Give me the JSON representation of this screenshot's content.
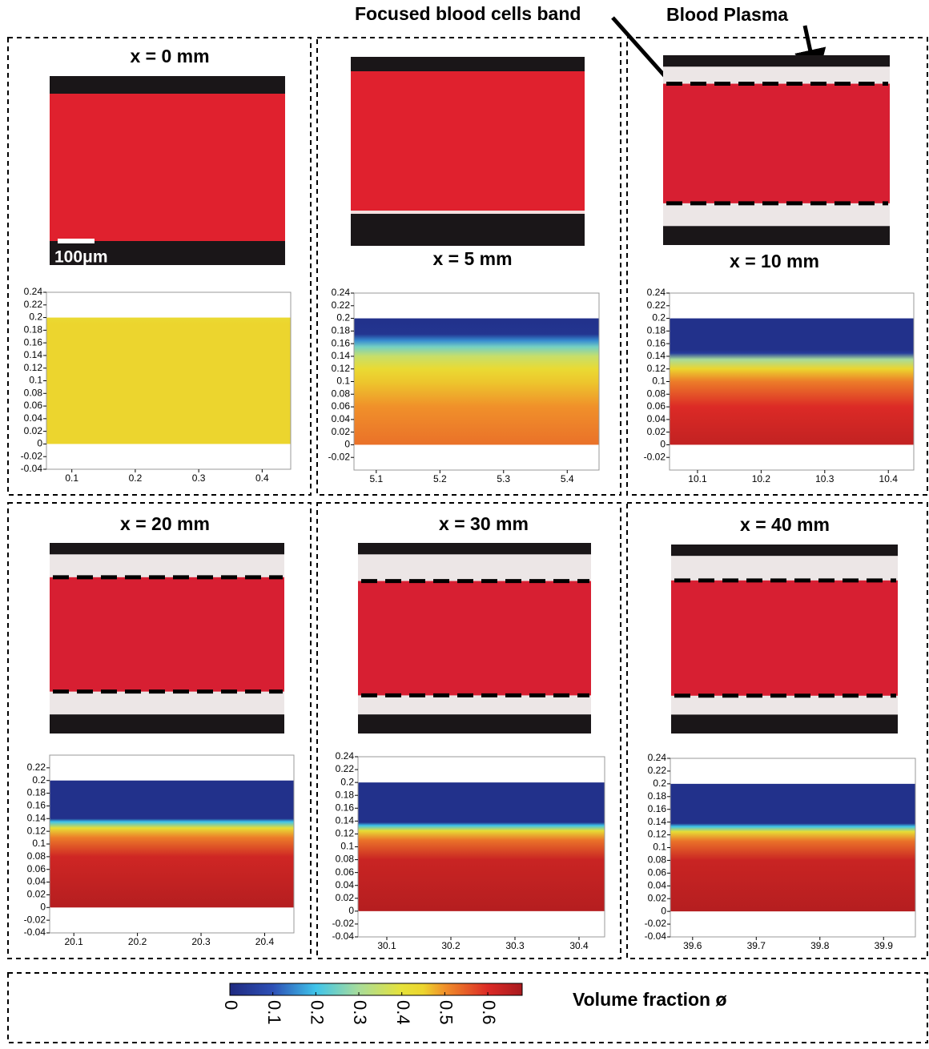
{
  "annotations": [
    "Focused blood cells band",
    "Blood Plasma"
  ],
  "scale_bar": "100μm",
  "chart_data": [
    {
      "type": "heatmap",
      "title": "x = 0 mm",
      "xlim": [
        0.06,
        0.445
      ],
      "xticks": [
        0.1,
        0.2,
        0.3,
        0.4
      ],
      "ylim": [
        -0.04,
        0.24
      ],
      "yticks": [
        -0.04,
        -0.02,
        0,
        0.02,
        0.04,
        0.06,
        0.08,
        0.1,
        0.12,
        0.14,
        0.16,
        0.18,
        0.2,
        0.22,
        0.24
      ],
      "channel": [
        0,
        0.2
      ],
      "profile": {
        "y": [
          0,
          0.19,
          0.2
        ],
        "values": [
          0.45,
          0.45,
          0.43
        ]
      }
    },
    {
      "type": "heatmap",
      "title": "x = 5 mm",
      "xlim": [
        5.065,
        5.45
      ],
      "xticks": [
        5.1,
        5.2,
        5.3,
        5.4
      ],
      "ylim": [
        -0.04,
        0.24
      ],
      "yticks": [
        -0.02,
        0,
        0.02,
        0.04,
        0.06,
        0.08,
        0.1,
        0.12,
        0.14,
        0.16,
        0.18,
        0.2,
        0.22,
        0.24
      ],
      "channel": [
        0,
        0.2
      ],
      "profile": {
        "y": [
          0,
          0.06,
          0.1,
          0.12,
          0.14,
          0.155,
          0.165,
          0.175,
          0.2
        ],
        "values": [
          0.53,
          0.5,
          0.46,
          0.43,
          0.35,
          0.25,
          0.15,
          0.03,
          0.02
        ]
      }
    },
    {
      "type": "heatmap",
      "title": "x = 10 mm",
      "xlim": [
        10.056,
        10.44
      ],
      "xticks": [
        10.1,
        10.2,
        10.3,
        10.4
      ],
      "ylim": [
        -0.04,
        0.24
      ],
      "yticks": [
        -0.02,
        0,
        0.02,
        0.04,
        0.06,
        0.08,
        0.1,
        0.12,
        0.14,
        0.16,
        0.18,
        0.2,
        0.22,
        0.24
      ],
      "channel": [
        0,
        0.2
      ],
      "profile": {
        "y": [
          0,
          0.06,
          0.1,
          0.12,
          0.135,
          0.145,
          0.15,
          0.2
        ],
        "values": [
          0.64,
          0.6,
          0.52,
          0.45,
          0.3,
          0.05,
          0.02,
          0.02
        ]
      }
    },
    {
      "type": "heatmap",
      "title": "x = 20 mm",
      "xlim": [
        20.062,
        20.446
      ],
      "xticks": [
        20.1,
        20.2,
        20.3,
        20.4
      ],
      "ylim": [
        -0.04,
        0.24
      ],
      "yticks": [
        -0.04,
        -0.02,
        0,
        0.02,
        0.04,
        0.06,
        0.08,
        0.1,
        0.12,
        0.14,
        0.16,
        0.18,
        0.2,
        0.22
      ],
      "channel": [
        0,
        0.2
      ],
      "profile": {
        "y": [
          0,
          0.08,
          0.11,
          0.125,
          0.135,
          0.14,
          0.2
        ],
        "values": [
          0.66,
          0.62,
          0.52,
          0.42,
          0.2,
          0.02,
          0.02
        ]
      }
    },
    {
      "type": "heatmap",
      "title": "x = 30 mm",
      "xlim": [
        30.055,
        30.44
      ],
      "xticks": [
        30.1,
        30.2,
        30.3,
        30.4
      ],
      "ylim": [
        -0.04,
        0.24
      ],
      "yticks": [
        -0.04,
        -0.02,
        0,
        0.02,
        0.04,
        0.06,
        0.08,
        0.1,
        0.12,
        0.14,
        0.16,
        0.18,
        0.2,
        0.22,
        0.24
      ],
      "channel": [
        0,
        0.2
      ],
      "profile": {
        "y": [
          0,
          0.08,
          0.11,
          0.125,
          0.133,
          0.138,
          0.2
        ],
        "values": [
          0.66,
          0.63,
          0.53,
          0.42,
          0.2,
          0.02,
          0.02
        ]
      }
    },
    {
      "type": "heatmap",
      "title": "x = 40 mm",
      "xlim": [
        39.565,
        39.95
      ],
      "xticks": [
        39.6,
        39.7,
        39.8,
        39.9
      ],
      "ylim": [
        -0.04,
        0.24
      ],
      "yticks": [
        -0.04,
        -0.02,
        0,
        0.02,
        0.04,
        0.06,
        0.08,
        0.1,
        0.12,
        0.14,
        0.16,
        0.18,
        0.2,
        0.22,
        0.24
      ],
      "channel": [
        0,
        0.2
      ],
      "profile": {
        "y": [
          0,
          0.08,
          0.11,
          0.125,
          0.133,
          0.138,
          0.2
        ],
        "values": [
          0.66,
          0.63,
          0.53,
          0.42,
          0.2,
          0.02,
          0.02
        ]
      }
    }
  ],
  "colorbar": {
    "label": "Volume fraction ø",
    "lim": [
      0,
      0.68
    ],
    "ticks": [
      0,
      0.1,
      0.2,
      0.3,
      0.4,
      0.5,
      0.6
    ],
    "colormap": {
      "values": [
        0,
        0.1,
        0.2,
        0.3,
        0.4,
        0.45,
        0.5,
        0.6,
        0.68
      ],
      "colors": [
        "#1f2a80",
        "#2d4fb5",
        "#3fc4ea",
        "#a8dc9a",
        "#e6e23a",
        "#ecd52e",
        "#f0902a",
        "#dc2a26",
        "#a81a1e"
      ]
    }
  }
}
